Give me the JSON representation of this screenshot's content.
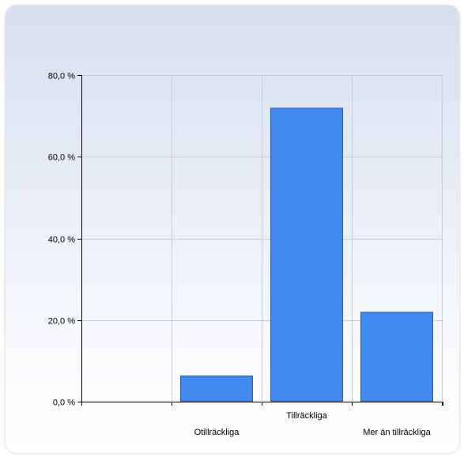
{
  "chart_data": {
    "type": "bar",
    "title": "",
    "xlabel": "",
    "ylabel": "",
    "categories": [
      "Otillräckliga",
      "Tillräckliga",
      "Mer än tillräckliga"
    ],
    "values": [
      6.3,
      71.9,
      21.9
    ],
    "ylim": [
      0,
      80
    ],
    "yticks": [
      0,
      20,
      40,
      60,
      80
    ],
    "ytick_labels": [
      "0,0 %",
      "20,0 %",
      "40,0 %",
      "60,0 %",
      "80,0 %"
    ],
    "grid": true,
    "legend": "none",
    "colors": {
      "bar_fill": "#4189ee",
      "bar_stroke": "#3a5a8c",
      "grid": "#c8ccd4",
      "axis": "#000000"
    }
  }
}
